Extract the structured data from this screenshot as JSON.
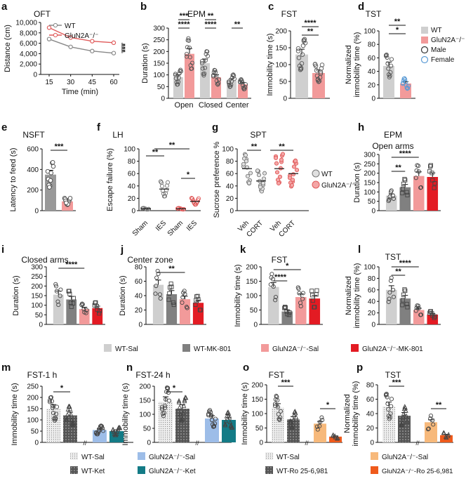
{
  "colors": {
    "wt": "#cfcfcf",
    "gluSal": "#f29a9a",
    "mk": "#808080",
    "gluMk": "#e31b23",
    "gluRed": "#e05a5a",
    "male": "#333333",
    "female": "#5b9bd5",
    "sigBlue": "#5b9bd5",
    "legLightBlue": "#9dbde8",
    "legTeal": "#137b86",
    "ketHatch": "#555555",
    "legOrangeLight": "#f7b97b",
    "legOrange": "#ef5a1c"
  },
  "chart_data": [
    {
      "type": "line",
      "panel": "a",
      "title": "OFT",
      "x": [
        15,
        30,
        45,
        60
      ],
      "xlabel": "Time (min)",
      "ylabel": "Distance (cm)",
      "ylim": [
        0,
        10000
      ],
      "yticks": [
        "0",
        "2,000",
        "4,000",
        "6,000",
        "8,000",
        "10,000"
      ],
      "series": [
        {
          "name": "WT",
          "values": [
            6800,
            5300,
            4500,
            4100
          ]
        },
        {
          "name": "GluN2A⁻/⁻",
          "values": [
            9000,
            7100,
            6400,
            6100
          ]
        }
      ],
      "legend": [
        "WT",
        "GluN2A⁻/⁻"
      ],
      "sig": [
        "***"
      ]
    },
    {
      "type": "bar",
      "panel": "b",
      "title": "EPM",
      "ylabel": "Duration (s)",
      "ylim": [
        0,
        300
      ],
      "yticks": [
        "0",
        "50",
        "100",
        "150",
        "200",
        "250",
        "300"
      ],
      "groups": [
        "Open",
        "Closed",
        "Center"
      ],
      "series": [
        {
          "name": "WT",
          "values": [
            90,
            150,
            75
          ]
        },
        {
          "name": "GluN2A⁻/⁻",
          "values": [
            190,
            90,
            60
          ]
        }
      ],
      "sig": [
        "****",
        "***",
        "****",
        "**",
        "**"
      ]
    },
    {
      "type": "bar",
      "panel": "c",
      "title": "FST",
      "ylabel": "Immobility time (s)",
      "ylim": [
        0,
        200
      ],
      "yticks": [
        "0",
        "50",
        "100",
        "150",
        "200"
      ],
      "categories": [
        "WT",
        "GluN2A⁻/⁻"
      ],
      "values": [
        130,
        75
      ],
      "sig": [
        "****",
        "**"
      ]
    },
    {
      "type": "bar",
      "panel": "d",
      "title": "TST",
      "ylabel": "Normalized immobility time (%)",
      "ylim": [
        0,
        100
      ],
      "yticks": [
        "0",
        "20",
        "40",
        "60",
        "80",
        "100"
      ],
      "categories": [
        "WT",
        "GluN2A⁻/⁻"
      ],
      "values": [
        48,
        22
      ],
      "sig": [
        "**",
        "*"
      ],
      "legend": [
        "WT",
        "GluN2A⁻/⁻",
        "Male",
        "Female"
      ]
    },
    {
      "type": "bar",
      "panel": "e",
      "title": "NSFT",
      "ylabel": "Latency to feed (s)",
      "ylim": [
        0,
        600
      ],
      "yticks": [
        "0",
        "200",
        "400",
        "600"
      ],
      "categories": [
        "WT",
        "GluN2A⁻/⁻"
      ],
      "values": [
        350,
        90
      ],
      "sig": [
        "***"
      ]
    },
    {
      "type": "scatter",
      "panel": "f",
      "title": "LH",
      "ylabel": "Escape failure (%)",
      "ylim": [
        0,
        100
      ],
      "yticks": [
        "0",
        "20",
        "40",
        "60",
        "80",
        "100"
      ],
      "categories": [
        "Sham",
        "IES",
        "Sham",
        "IES"
      ],
      "values": [
        3,
        35,
        3,
        15
      ],
      "sig": [
        "**",
        "**",
        "*"
      ]
    },
    {
      "type": "scatter",
      "panel": "g",
      "title": "SPT",
      "ylabel": "Sucrose preference %",
      "ylim": [
        0,
        100
      ],
      "yticks": [
        "0",
        "20",
        "40",
        "60",
        "80",
        "100"
      ],
      "categories": [
        "Veh",
        "CORT",
        "Veh",
        "CORT"
      ],
      "values": [
        68,
        48,
        68,
        60
      ],
      "sig": [
        "**",
        "**"
      ],
      "legend": [
        "WT",
        "GluN2A⁻/⁻"
      ]
    },
    {
      "type": "bar",
      "panel": "h",
      "title": "EPM",
      "subtitle": "Open arms",
      "ylabel": "Duration (s)",
      "ylim": [
        0,
        300
      ],
      "yticks": [
        "0",
        "50",
        "100",
        "150",
        "200",
        "250",
        "300"
      ],
      "categories": [
        "WT-Sal",
        "WT-MK-801",
        "GluN2A⁻/⁻-Sal",
        "GluN2A⁻/⁻-MK-801"
      ],
      "values": [
        80,
        125,
        185,
        180
      ],
      "sig": [
        "**",
        "****"
      ]
    },
    {
      "type": "bar",
      "panel": "i",
      "title": "Closed arms",
      "ylabel": "Duration (s)",
      "ylim": [
        0,
        300
      ],
      "yticks": [
        "0",
        "50",
        "100",
        "150",
        "200",
        "250",
        "300"
      ],
      "categories": [
        "WT-Sal",
        "WT-MK-801",
        "GluN2A⁻/⁻-Sal",
        "GluN2A⁻/⁻-MK-801"
      ],
      "values": [
        155,
        130,
        80,
        85
      ],
      "sig": [
        "****"
      ]
    },
    {
      "type": "bar",
      "panel": "j",
      "title": "Center zone",
      "ylabel": "Duration (s)",
      "ylim": [
        0,
        80
      ],
      "yticks": [
        "0",
        "20",
        "40",
        "60",
        "80"
      ],
      "categories": [
        "WT-Sal",
        "WT-MK-801",
        "GluN2A⁻/⁻-Sal",
        "GluN2A⁻/⁻-MK-801"
      ],
      "values": [
        55,
        42,
        35,
        30
      ],
      "sig": [
        "**"
      ]
    },
    {
      "type": "bar",
      "panel": "k",
      "title": "FST",
      "ylabel": "Immobility time (s)",
      "ylim": [
        0,
        200
      ],
      "yticks": [
        "0",
        "50",
        "100",
        "150",
        "200"
      ],
      "categories": [
        "WT-Sal",
        "WT-MK-801",
        "GluN2A⁻/⁻-Sal",
        "GluN2A⁻/⁻-MK-801"
      ],
      "values": [
        130,
        45,
        95,
        90
      ],
      "sig": [
        "****",
        "*"
      ]
    },
    {
      "type": "bar",
      "panel": "l",
      "title": "TST",
      "ylabel": "Normalized immobility time (%)",
      "ylim": [
        0,
        100
      ],
      "yticks": [
        "0",
        "20",
        "40",
        "60",
        "80",
        "100"
      ],
      "categories": [
        "WT-Sal",
        "WT-MK-801",
        "GluN2A⁻/⁻-Sal",
        "GluN2A⁻/⁻-MK-801"
      ],
      "values": [
        60,
        45,
        25,
        17
      ],
      "sig": [
        "**",
        "****"
      ]
    },
    {
      "type": "bar",
      "panel": "m",
      "title": "FST-1 h",
      "ylabel": "Immobility time (s)",
      "ylim": [
        0,
        250
      ],
      "yticks": [
        "0",
        "50",
        "100",
        "150",
        "200",
        "250"
      ],
      "categories": [
        "WT-Sal",
        "WT-Ket",
        "GluN2A⁻/⁻-Sal",
        "GluN2A⁻/⁻-Ket"
      ],
      "values": [
        150,
        120,
        55,
        50
      ],
      "sig": [
        "*"
      ]
    },
    {
      "type": "bar",
      "panel": "n",
      "title": "FST-24 h",
      "ylabel": "Immobility time (s)",
      "ylim": [
        0,
        200
      ],
      "yticks": [
        "0",
        "50",
        "100",
        "150",
        "200"
      ],
      "categories": [
        "WT-Sal",
        "WT-Ket",
        "GluN2A⁻/⁻-Sal",
        "GluN2A⁻/⁻-Ket"
      ],
      "values": [
        145,
        120,
        85,
        80
      ],
      "sig": [
        "*"
      ]
    },
    {
      "type": "bar",
      "panel": "o",
      "title": "FST",
      "ylabel": "Immobility time (s)",
      "ylim": [
        0,
        200
      ],
      "yticks": [
        "0",
        "50",
        "100",
        "150",
        "200"
      ],
      "categories": [
        "WT-Sal",
        "WT-Ro 25-6,981",
        "GluN2A⁻/⁻-Sal",
        "GluN2A⁻/⁻-Ro 25-6,981"
      ],
      "values": [
        120,
        80,
        65,
        20
      ],
      "sig": [
        "***",
        "*"
      ]
    },
    {
      "type": "bar",
      "panel": "p",
      "title": "TST",
      "ylabel": "Normalized immobility time (%)",
      "ylim": [
        0,
        80
      ],
      "yticks": [
        "0",
        "20",
        "40",
        "60",
        "80"
      ],
      "categories": [
        "WT-Sal",
        "WT-Ro 25-6,981",
        "GluN2A⁻/⁻-Sal",
        "GluN2A⁻/⁻-Ro 25-6,981"
      ],
      "values": [
        50,
        37,
        28,
        10
      ],
      "sig": [
        "***",
        "**"
      ]
    }
  ],
  "legends": {
    "mk": [
      "WT-Sal",
      "WT-MK-801",
      "GluN2A⁻/⁻-Sal",
      "GluN2A⁻/⁻-MK-801"
    ],
    "ketWt": [
      "WT-Sal",
      "WT-Ket"
    ],
    "ketGlu": [
      "GluN2A⁻/⁻-Sal",
      "GluN2A⁻/⁻-Ket"
    ],
    "roWt": [
      "WT-Sal",
      "WT-Ro 25-6,981"
    ],
    "roGlu": [
      "GluN2A⁻/⁻-Sal",
      "GluN2A⁻/⁻-Ro 25-6,981"
    ]
  }
}
